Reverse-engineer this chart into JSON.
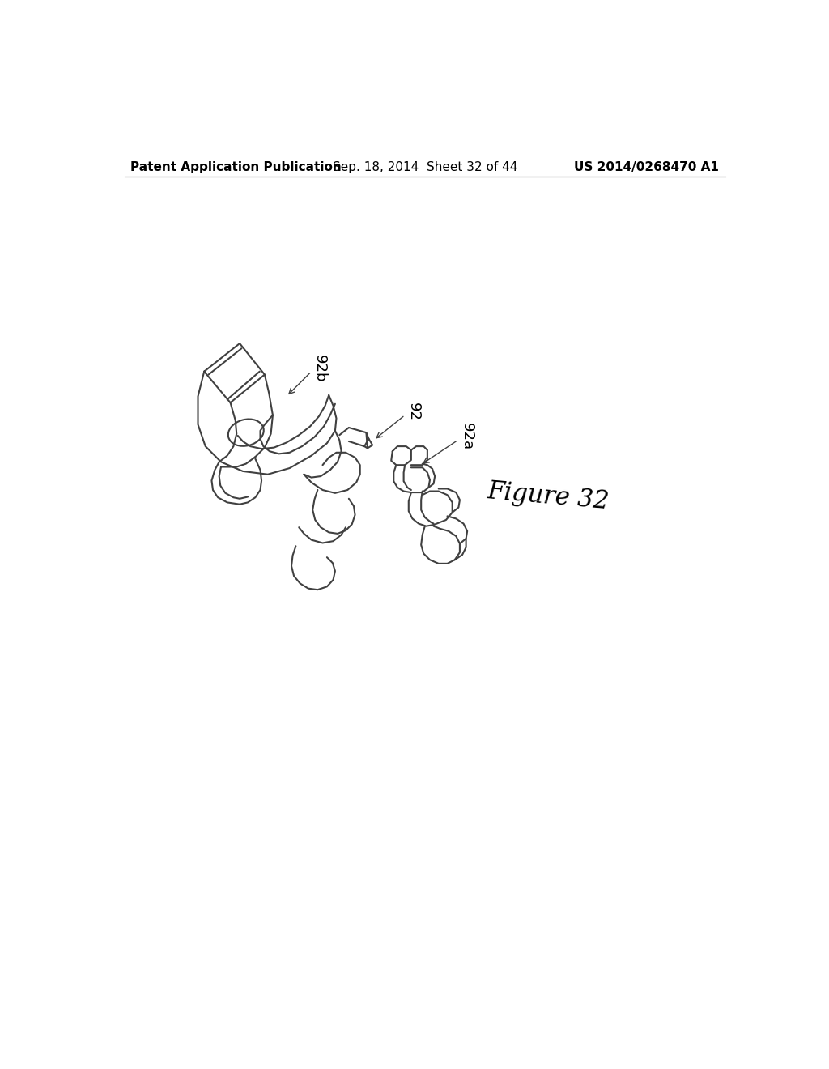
{
  "background_color": "#ffffff",
  "header_left": "Patent Application Publication",
  "header_center": "Sep. 18, 2014  Sheet 32 of 44",
  "header_right": "US 2014/0268470 A1",
  "header_fontsize": 11,
  "figure_label": "Figure 32",
  "figure_label_fontsize": 22,
  "label_fontsize": 13,
  "line_color": "#404040",
  "line_width": 1.5
}
